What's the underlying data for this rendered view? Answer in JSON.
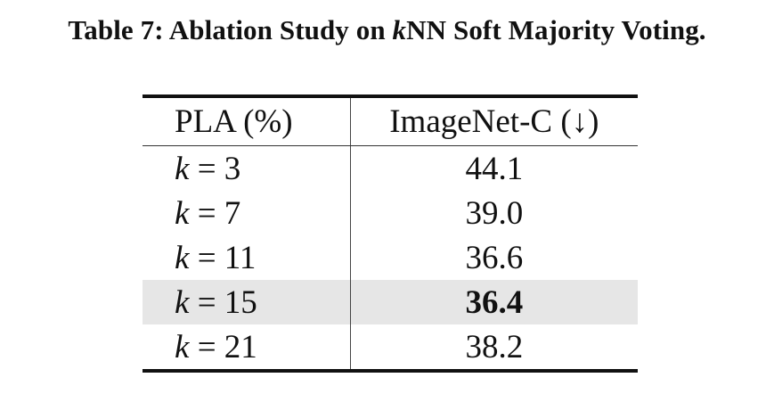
{
  "caption": {
    "prefix": "Table 7: Ablation Study on ",
    "k": "k",
    "suffix": "NN Soft Majority Voting."
  },
  "table": {
    "headers": [
      "PLA (%)",
      "ImageNet-C (↓)"
    ],
    "rows": [
      {
        "k": "k",
        "eq": " = 3",
        "value": "44.1"
      },
      {
        "k": "k",
        "eq": " = 7",
        "value": "39.0"
      },
      {
        "k": "k",
        "eq": " = 11",
        "value": "36.6"
      },
      {
        "k": "k",
        "eq": " = 15",
        "value": "36.4"
      },
      {
        "k": "k",
        "eq": " = 21",
        "value": "38.2"
      }
    ],
    "highlight_color": "#e6e6e6"
  }
}
